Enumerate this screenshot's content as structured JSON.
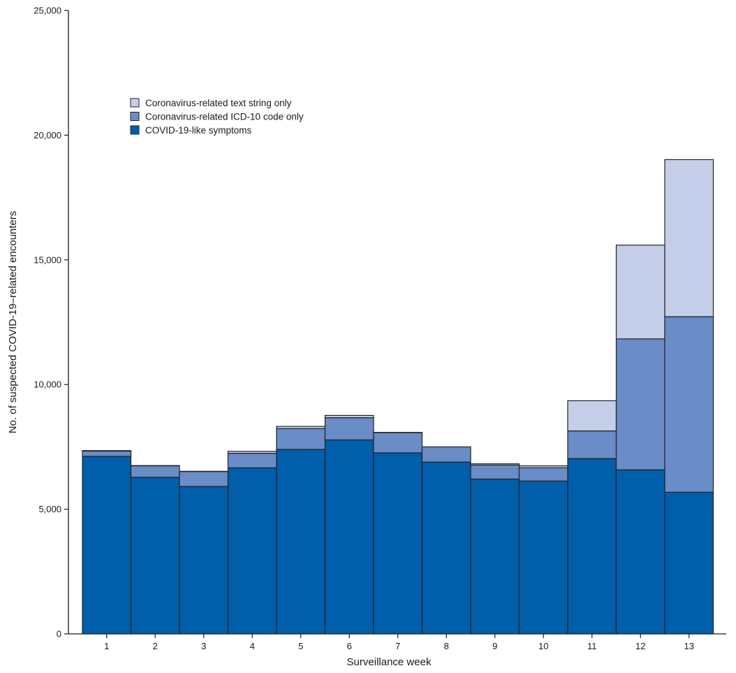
{
  "chart_data": {
    "type": "bar",
    "stacked": true,
    "categories": [
      "1",
      "2",
      "3",
      "4",
      "5",
      "6",
      "7",
      "8",
      "9",
      "10",
      "11",
      "12",
      "13"
    ],
    "series": [
      {
        "name": "COVID-19-like symptoms",
        "color": "#005eaa",
        "values": [
          7120,
          6280,
          5910,
          6660,
          7400,
          7780,
          7260,
          6890,
          6210,
          6130,
          7030,
          6580,
          5680
        ]
      },
      {
        "name": "Coronavirus-related ICD-10 code only",
        "color": "#6a8dc8",
        "values": [
          210,
          460,
          600,
          580,
          830,
          890,
          810,
          610,
          560,
          530,
          1110,
          5250,
          7040
        ]
      },
      {
        "name": "Coronavirus-related text string only",
        "color": "#c5cee9",
        "values": [
          20,
          10,
          10,
          80,
          90,
          90,
          10,
          0,
          50,
          80,
          1210,
          3760,
          6300
        ]
      }
    ],
    "title": "",
    "xlabel": "Surveillance week",
    "ylabel": "No. of suspected COVID-19–related encounters",
    "ylim": [
      0,
      25000
    ],
    "yticks": [
      0,
      5000,
      10000,
      15000,
      20000,
      25000
    ],
    "ytick_labels": [
      "0",
      "5,000",
      "10,000",
      "15,000",
      "20,000",
      "25,000"
    ],
    "legend_position": "top-left",
    "legend_order": [
      2,
      1,
      0
    ],
    "grid": false
  }
}
